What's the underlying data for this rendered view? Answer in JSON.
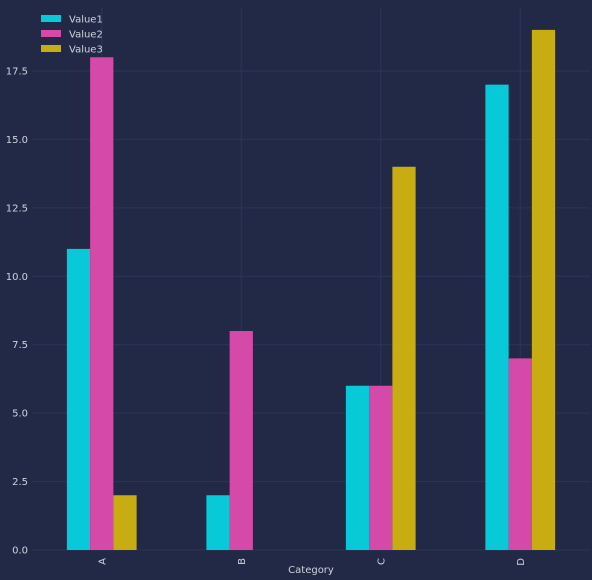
{
  "chart_data": {
    "type": "bar",
    "title": "",
    "xlabel": "Category",
    "ylabel": "",
    "categories": [
      "A",
      "B",
      "C",
      "D"
    ],
    "series": [
      {
        "name": "Value1",
        "values": [
          11,
          2,
          6,
          17
        ],
        "color": "#08c9d8"
      },
      {
        "name": "Value2",
        "values": [
          18,
          8,
          6,
          7
        ],
        "color": "#d54aa8"
      },
      {
        "name": "Value3",
        "values": [
          2,
          0,
          14,
          19
        ],
        "color": "#c8ad12"
      }
    ],
    "ylim": [
      0,
      19.8
    ],
    "yticks": [
      "0.0",
      "2.5",
      "5.0",
      "7.5",
      "10.0",
      "12.5",
      "15.0",
      "17.5"
    ],
    "grid": true,
    "legend_position": "top-left",
    "background": "#212946",
    "grid_color": "#2b3556"
  }
}
